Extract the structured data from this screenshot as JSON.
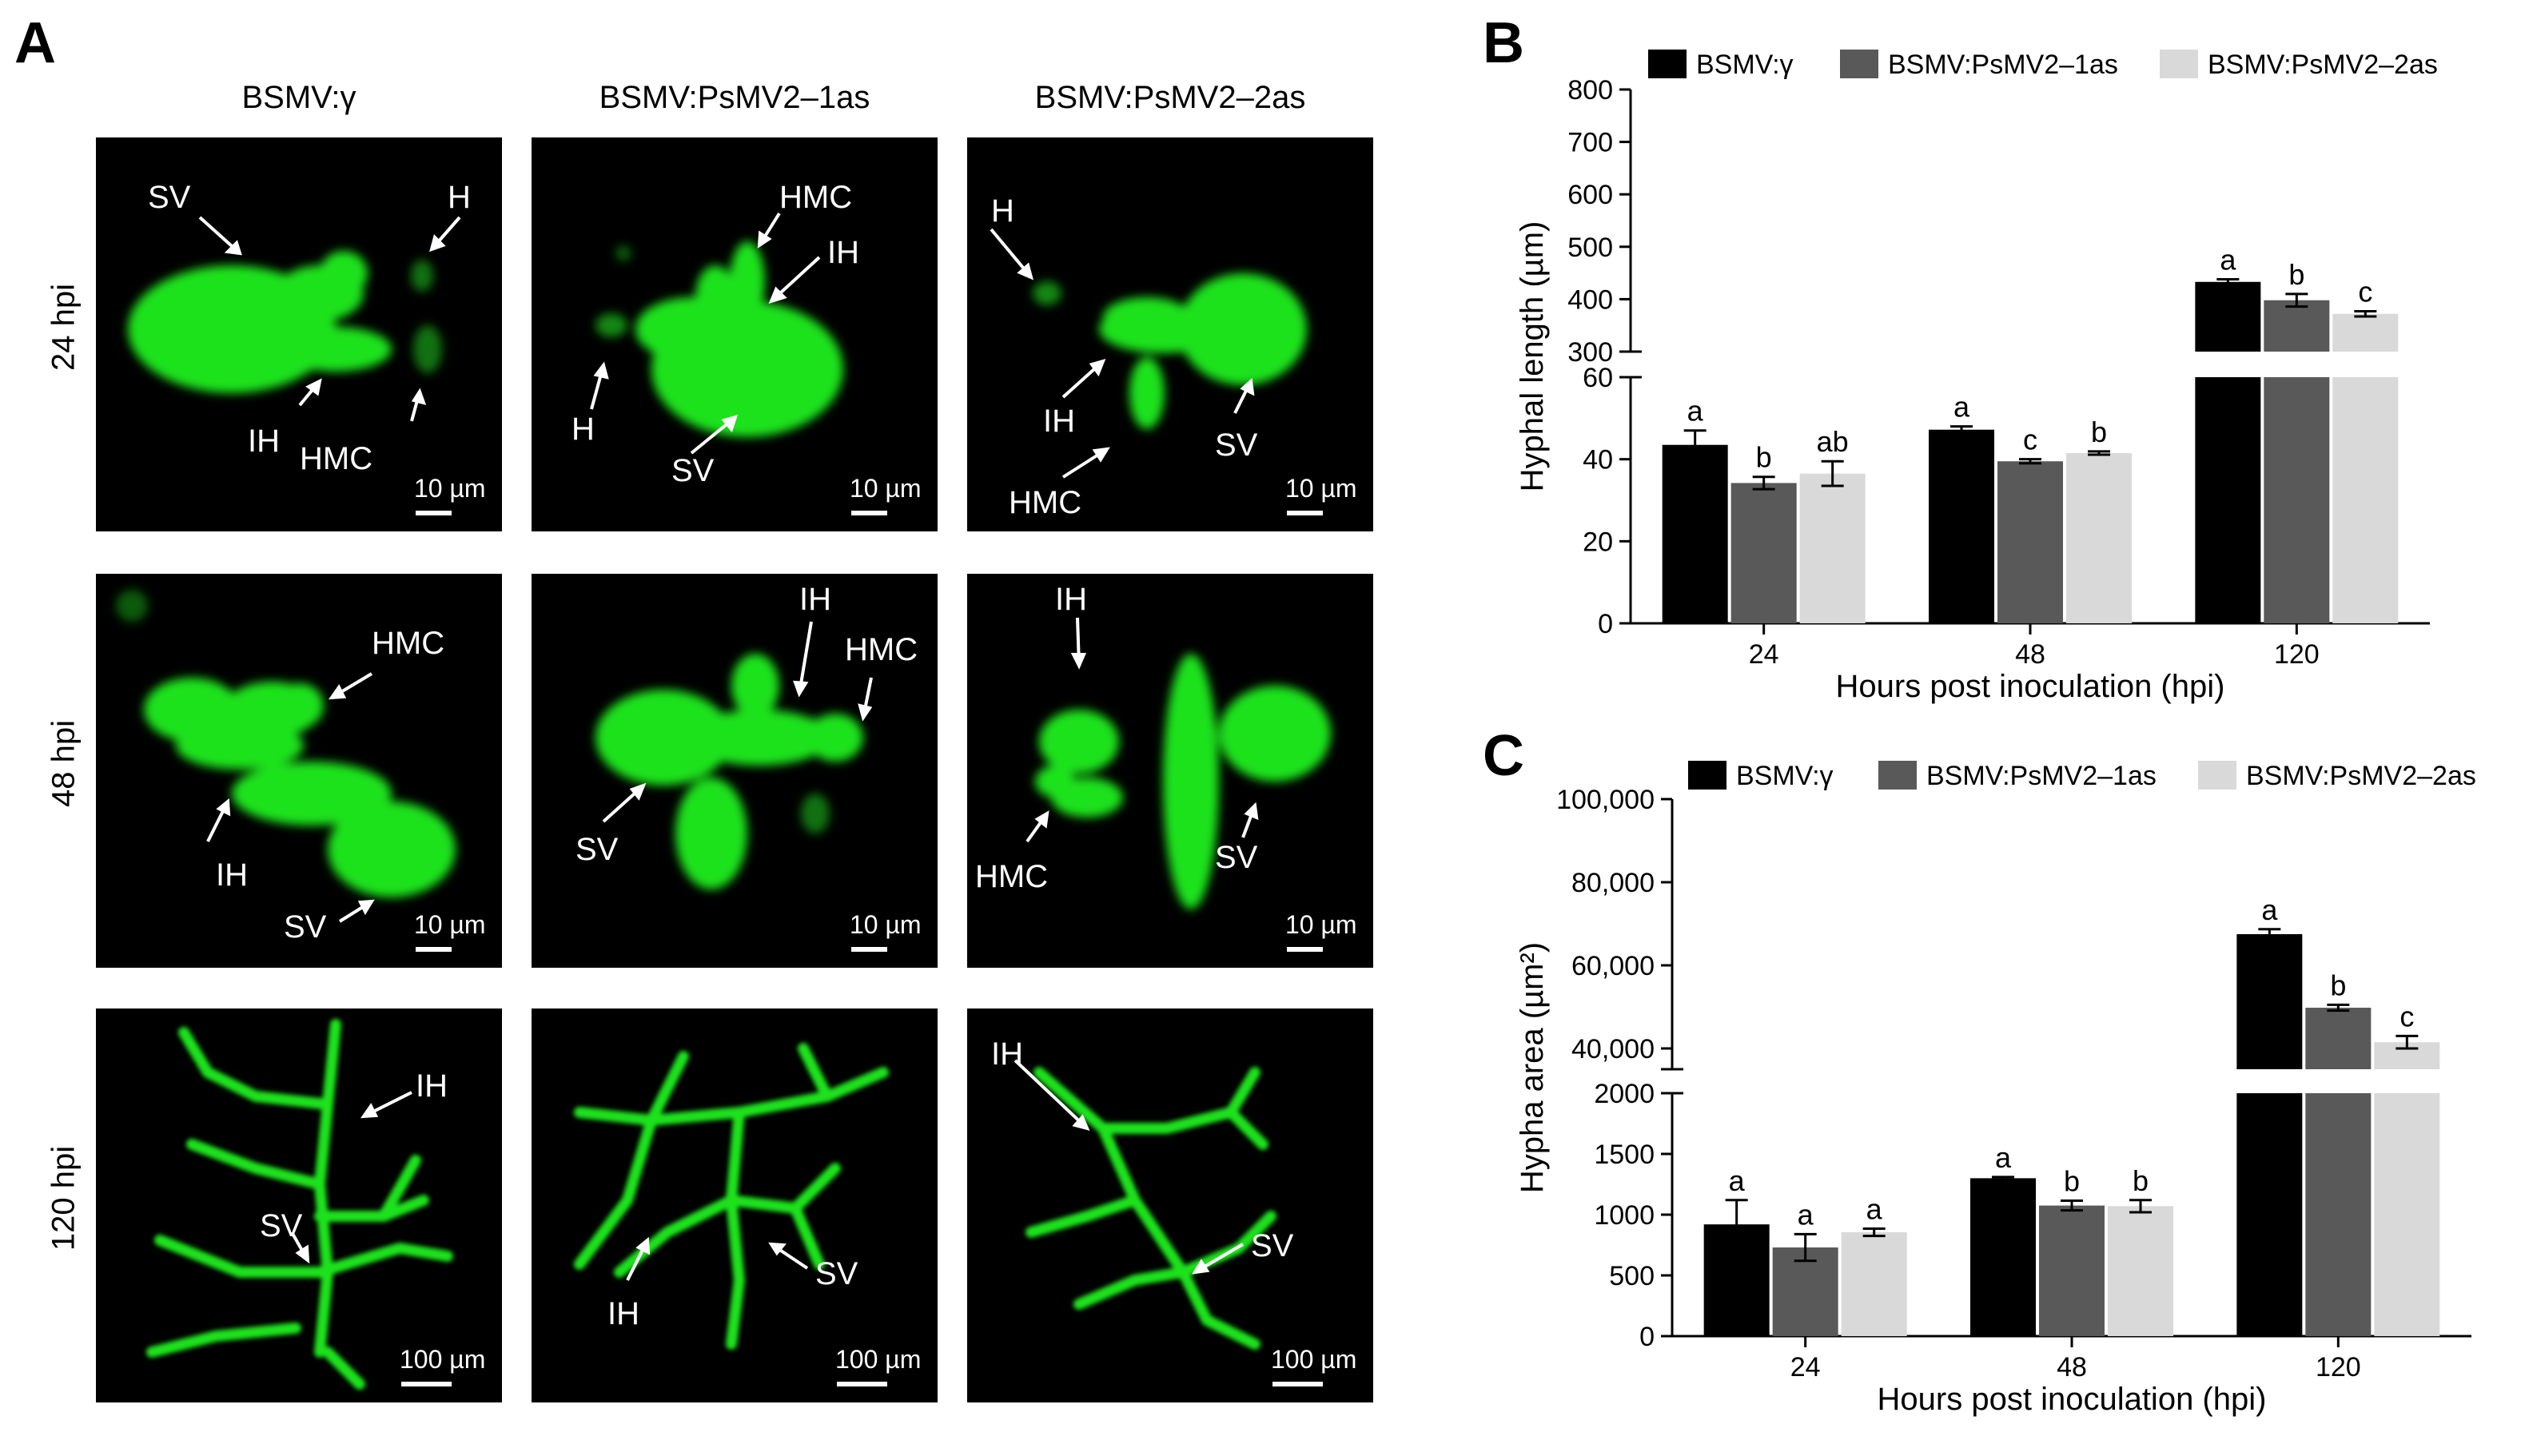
{
  "panel_letters": {
    "a": "A",
    "b": "B",
    "c": "C"
  },
  "panel_a": {
    "col_headers": [
      "BSMV:γ",
      "BSMV:PsMV2–1as",
      "BSMV:PsMV2–2as"
    ],
    "row_labels": [
      "24 hpi",
      "48 hpi",
      "120 hpi"
    ],
    "scale_bars": {
      "r0c0": "10 µm",
      "r0c1": "10 µm",
      "r0c2": "10 µm",
      "r1c0": "10 µm",
      "r1c1": "10 µm",
      "r1c2": "10 µm",
      "r2c0": "100 µm",
      "r2c1": "100 µm",
      "r2c2": "100 µm"
    },
    "annotations": {
      "r0c0": [
        "SV",
        "H",
        "IH",
        "HMC"
      ],
      "r0c1": [
        "HMC",
        "IH",
        "H",
        "SV"
      ],
      "r0c2": [
        "H",
        "IH",
        "SV",
        "HMC"
      ],
      "r1c0": [
        "HMC",
        "IH",
        "SV"
      ],
      "r1c1": [
        "IH",
        "HMC",
        "SV"
      ],
      "r1c2": [
        "IH",
        "HMC",
        "SV"
      ],
      "r2c0": [
        "IH",
        "SV"
      ],
      "r2c1": [
        "IH",
        "SV"
      ],
      "r2c2": [
        "IH",
        "SV"
      ]
    },
    "fluorescence_color": "#1fe21f"
  },
  "colors": {
    "series": [
      "#000000",
      "#595959",
      "#d9d9d9"
    ]
  },
  "chart_data": [
    {
      "type": "bar",
      "panel": "B",
      "xlabel": "Hours post inoculation (hpi)",
      "ylabel": "Hyphal length (µm)",
      "categories": [
        "24",
        "48",
        "120"
      ],
      "legend_position": "top",
      "broken_axis": {
        "lower_range": [
          0,
          60
        ],
        "upper_range": [
          300,
          800
        ]
      },
      "lower_ticks": [
        "0",
        "20",
        "40",
        "60"
      ],
      "upper_ticks": [
        "300",
        "400",
        "500",
        "600",
        "700",
        "800"
      ],
      "series": [
        {
          "name": "BSMV:γ",
          "values": [
            43.5,
            47.2,
            433
          ],
          "errors": [
            3.5,
            0.8,
            5
          ],
          "letters": [
            "a",
            "a",
            "a"
          ]
        },
        {
          "name": "BSMV:PsMV2–1as",
          "values": [
            34.2,
            39.5,
            398
          ],
          "errors": [
            1.5,
            0.5,
            12
          ],
          "letters": [
            "b",
            "c",
            "b"
          ]
        },
        {
          "name": "BSMV:PsMV2–2as",
          "values": [
            36.5,
            41.5,
            372
          ],
          "errors": [
            3.0,
            0.4,
            5
          ],
          "letters": [
            "ab",
            "b",
            "c"
          ]
        }
      ]
    },
    {
      "type": "bar",
      "panel": "C",
      "xlabel": "Hours post inoculation (hpi)",
      "ylabel": "Hypha area (µm²)",
      "categories": [
        "24",
        "48",
        "120"
      ],
      "legend_position": "top",
      "broken_axis": {
        "lower_range": [
          0,
          2000
        ],
        "upper_range": [
          35000,
          100000
        ]
      },
      "lower_ticks": [
        "0",
        "500",
        "1000",
        "1500",
        "2000"
      ],
      "upper_ticks": [
        "40,000",
        "60,000",
        "80,000",
        "100,000"
      ],
      "series": [
        {
          "name": "BSMV:γ",
          "values": [
            920,
            1300,
            67500
          ],
          "errors": [
            200,
            10,
            1200
          ],
          "letters": [
            "a",
            "a",
            "a"
          ]
        },
        {
          "name": "BSMV:PsMV2–1as",
          "values": [
            730,
            1075,
            49800
          ],
          "errors": [
            110,
            40,
            700
          ],
          "letters": [
            "a",
            "b",
            "b"
          ]
        },
        {
          "name": "BSMV:PsMV2–2as",
          "values": [
            855,
            1070,
            41500
          ],
          "errors": [
            30,
            50,
            1500
          ],
          "letters": [
            "a",
            "b",
            "c"
          ]
        }
      ]
    }
  ]
}
